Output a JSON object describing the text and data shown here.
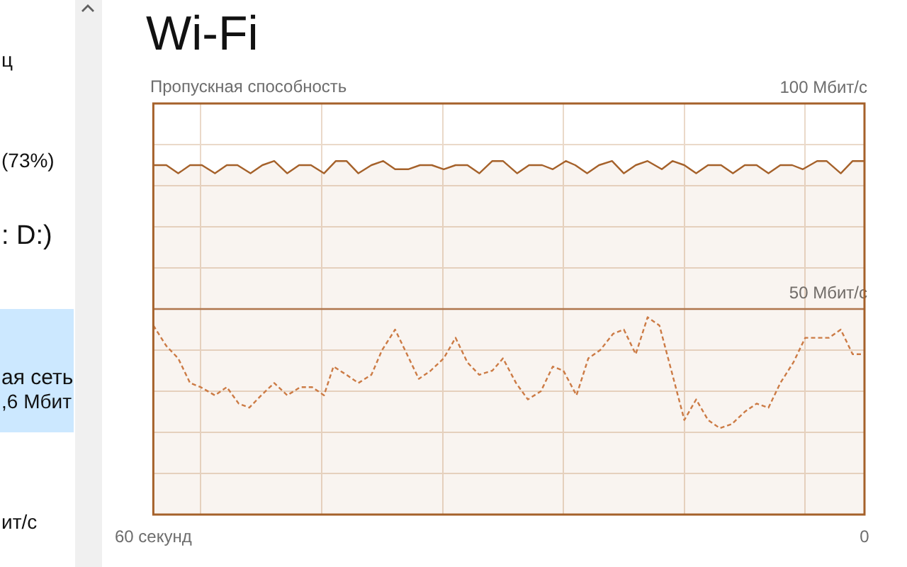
{
  "chart_data": {
    "type": "line",
    "title": "Wi-Fi",
    "ylabel": "Пропускная способность",
    "xlim": [
      60,
      0
    ],
    "xticks": [
      {
        "value": 60,
        "label": "60 секунд"
      },
      {
        "value": 56,
        "label": null
      },
      {
        "value": 45.8,
        "label": null
      },
      {
        "value": 35.6,
        "label": null
      },
      {
        "value": 25.4,
        "label": null
      },
      {
        "value": 15.2,
        "label": null
      },
      {
        "value": 5,
        "label": null
      },
      0
    ],
    "ylim": [
      0,
      100
    ],
    "yticks": [
      {
        "value": 0,
        "label": null
      },
      {
        "value": 10,
        "label": null
      },
      {
        "value": 20,
        "label": null
      },
      {
        "value": 30,
        "label": null
      },
      {
        "value": 40,
        "label": null
      },
      {
        "value": 50,
        "label": "50 Мбит/с"
      },
      {
        "value": 60,
        "label": null
      },
      {
        "value": 70,
        "label": null
      },
      {
        "value": 80,
        "label": null
      },
      {
        "value": 90,
        "label": null
      },
      {
        "value": 100,
        "label": "100 Мбит/с"
      }
    ],
    "grid": true,
    "marker": "none",
    "ref_lines": [
      {
        "axis": "y",
        "value": 50,
        "color": "#b07850"
      }
    ],
    "series": [
      {
        "type": "area",
        "color": "#a5612a",
        "line_style": "solid",
        "x": [
          60,
          58.9,
          57.9,
          56.9,
          55.9,
          54.8,
          53.8,
          52.9,
          51.8,
          50.8,
          49.8,
          48.7,
          47.7,
          46.7,
          45.6,
          44.6,
          43.7,
          42.7,
          41.6,
          40.6,
          39.6,
          38.5,
          37.5,
          36.5,
          35.5,
          34.5,
          33.5,
          32.5,
          31.4,
          30.5,
          29.3,
          28.3,
          27.2,
          26.3,
          25.2,
          24.4,
          23.4,
          22.4,
          21.3,
          20.3,
          19.3,
          18.3,
          17.1,
          16.2,
          15.2,
          14.2,
          13.2,
          12.1,
          11.1,
          10.1,
          9.1,
          8.1,
          7.1,
          6.1,
          5.2,
          4,
          3.2,
          2,
          1,
          0
        ],
        "values": [
          85,
          85,
          83,
          85,
          85,
          83,
          85,
          85,
          83,
          85,
          86,
          83,
          85,
          85,
          83,
          86,
          86,
          83,
          85,
          86,
          84,
          84,
          85,
          85,
          84,
          85,
          85,
          83,
          86,
          86,
          83,
          85,
          85,
          84,
          86,
          85,
          83,
          85,
          86,
          83,
          85,
          86,
          84,
          86,
          85,
          83,
          85,
          85,
          83,
          85,
          85,
          83,
          85,
          85,
          84,
          86,
          86,
          83,
          86,
          86
        ]
      },
      {
        "type": "line",
        "color": "#cf7d47",
        "line_style": "dashed",
        "x": [
          60,
          58.9,
          57.9,
          56.9,
          56,
          54.8,
          53.8,
          52.8,
          51.9,
          50.9,
          49.8,
          48.7,
          47.6,
          46.6,
          45.6,
          44.8,
          43.7,
          42.7,
          41.6,
          40.7,
          39.6,
          38.6,
          37.6,
          36.6,
          35.5,
          34.5,
          33.5,
          32.5,
          31.4,
          30.5,
          29.4,
          28.4,
          27.3,
          26.3,
          25.4,
          24.3,
          23.3,
          22.3,
          21.2,
          20.3,
          19.3,
          18.3,
          17.3,
          16.2,
          15.2,
          14.2,
          13.2,
          12.2,
          11.2,
          10.1,
          9.1,
          8.1,
          7.1,
          6,
          5,
          4,
          3,
          2,
          1,
          0
        ],
        "values": [
          46,
          41,
          38,
          32,
          31,
          29,
          31,
          27,
          26,
          29,
          32,
          29,
          31,
          31,
          29,
          36,
          34,
          32,
          34,
          40,
          45,
          39,
          33,
          35,
          38,
          43,
          37,
          34,
          35,
          38,
          32,
          28,
          30,
          36,
          35,
          29,
          38,
          40,
          44,
          45,
          39,
          48,
          46,
          34,
          23,
          28,
          23,
          21,
          22,
          25,
          27,
          26,
          32,
          37,
          43,
          43,
          43,
          45,
          39,
          39
        ]
      }
    ],
    "annotations": [
      "ц",
      "(73%)",
      ": D:)",
      "ая сеть",
      ",6 Мбит",
      "ит/с"
    ]
  }
}
